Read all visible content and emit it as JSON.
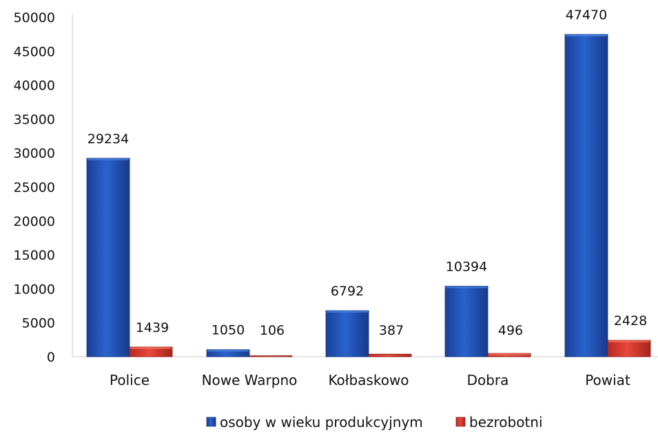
{
  "chart_data": {
    "type": "bar",
    "categories": [
      "Police",
      "Nowe Warpno",
      "Kołbaskowo",
      "Dobra",
      "Powiat"
    ],
    "series": [
      {
        "name": "osoby w wieku produkcyjnym",
        "values": [
          29234,
          1050,
          6792,
          10394,
          47470
        ],
        "color": "#1f4fb0"
      },
      {
        "name": "bezrobotni",
        "values": [
          1439,
          106,
          387,
          496,
          2428
        ],
        "color": "#d63a2e"
      }
    ],
    "data_labels": [
      [
        "29234",
        "1050",
        "6792",
        "10394",
        "47470"
      ],
      [
        "1439",
        "106",
        "387",
        "496",
        "2428"
      ]
    ],
    "y_ticks": [
      "0",
      "5000",
      "10000",
      "15000",
      "20000",
      "25000",
      "30000",
      "35000",
      "40000",
      "45000",
      "50000"
    ],
    "ylim": [
      0,
      50000
    ],
    "title": "",
    "xlabel": "",
    "ylabel": "",
    "grid": false,
    "legend_position": "bottom"
  }
}
